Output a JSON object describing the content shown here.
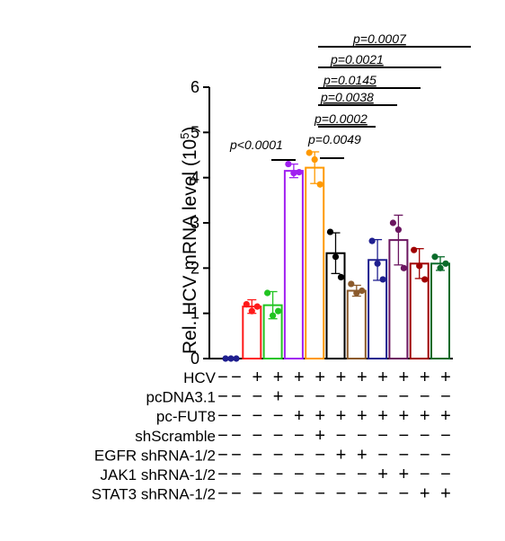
{
  "chart_data": {
    "type": "bar",
    "ylabel_main": "Rel. HCV mRNA  level (10",
    "ylabel_exp": "5",
    "ylabel_close": ")",
    "ylim": [
      0,
      6
    ],
    "yticks": [
      "0",
      "1",
      "2",
      "3",
      "4",
      "5",
      "6"
    ],
    "grid": false,
    "bars": [
      {
        "mean": 0.0,
        "sd": 0.0,
        "points": [
          0.0,
          0.0,
          0.0
        ],
        "color": "#1f1f8f"
      },
      {
        "mean": 1.15,
        "sd": 0.15,
        "points": [
          1.2,
          1.05,
          1.15
        ],
        "color": "#ff1a1a"
      },
      {
        "mean": 1.18,
        "sd": 0.3,
        "points": [
          1.45,
          0.95,
          1.05
        ],
        "color": "#22c422"
      },
      {
        "mean": 4.15,
        "sd": 0.15,
        "points": [
          4.3,
          4.1,
          4.12
        ],
        "color": "#a020f0"
      },
      {
        "mean": 4.22,
        "sd": 0.35,
        "points": [
          4.55,
          4.4,
          3.85
        ],
        "color": "#ff9900"
      },
      {
        "mean": 2.33,
        "sd": 0.45,
        "points": [
          2.8,
          2.25,
          1.8
        ],
        "color": "#000000"
      },
      {
        "mean": 1.5,
        "sd": 0.12,
        "points": [
          1.65,
          1.45,
          1.5
        ],
        "color": "#8b5a2b"
      },
      {
        "mean": 2.18,
        "sd": 0.45,
        "points": [
          2.6,
          2.1,
          1.75
        ],
        "color": "#1f1f8f"
      },
      {
        "mean": 2.62,
        "sd": 0.55,
        "points": [
          3.0,
          2.85,
          2.0
        ],
        "color": "#6b1660"
      },
      {
        "mean": 2.1,
        "sd": 0.33,
        "points": [
          2.4,
          2.05,
          1.75
        ],
        "color": "#a00000"
      },
      {
        "mean": 2.1,
        "sd": 0.15,
        "points": [
          2.25,
          2.0,
          2.1
        ],
        "color": "#0a6b2a"
      }
    ],
    "pvalues": [
      {
        "label": "p<0.0001",
        "from": 3,
        "to": 4,
        "underline": false
      },
      {
        "label": "p=0.0049",
        "from": 4,
        "to": 5,
        "underline": false
      },
      {
        "label": "p=0.0002",
        "from": 4,
        "to": 6,
        "underline": true
      },
      {
        "label": "p=0.0038",
        "from": 4,
        "to": 7,
        "underline": true
      },
      {
        "label": "p=0.0145",
        "from": 4,
        "to": 8,
        "underline": true
      },
      {
        "label": "p=0.0021",
        "from": 4,
        "to": 9,
        "underline": true
      },
      {
        "label": "p=0.0007",
        "from": 4,
        "to": 10,
        "underline": true
      }
    ],
    "conditions": [
      {
        "label": "HCV",
        "signs": [
          "−",
          "+",
          "+",
          "+",
          "+",
          "+",
          "+",
          "+",
          "+",
          "+",
          "+"
        ]
      },
      {
        "label": "pcDNA3.1",
        "signs": [
          "−",
          "−",
          "+",
          "−",
          "−",
          "−",
          "−",
          "−",
          "−",
          "−",
          "−"
        ]
      },
      {
        "label": "pc-FUT8",
        "signs": [
          "−",
          "−",
          "−",
          "+",
          "+",
          "+",
          "+",
          "+",
          "+",
          "+",
          "+"
        ]
      },
      {
        "label": "shScramble",
        "signs": [
          "−",
          "−",
          "−",
          "−",
          "+",
          "−",
          "−",
          "−",
          "−",
          "−",
          "−"
        ]
      },
      {
        "label": "EGFR shRNA-1/2",
        "signs": [
          "−",
          "−",
          "−",
          "−",
          "−",
          "+",
          "+",
          "−",
          "−",
          "−",
          "−"
        ]
      },
      {
        "label": "JAK1 shRNA-1/2",
        "signs": [
          "−",
          "−",
          "−",
          "−",
          "−",
          "−",
          "−",
          "+",
          "+",
          "−",
          "−"
        ]
      },
      {
        "label": "STAT3 shRNA-1/2",
        "signs": [
          "−",
          "−",
          "−",
          "−",
          "−",
          "−",
          "−",
          "−",
          "−",
          "+",
          "+"
        ]
      }
    ]
  }
}
